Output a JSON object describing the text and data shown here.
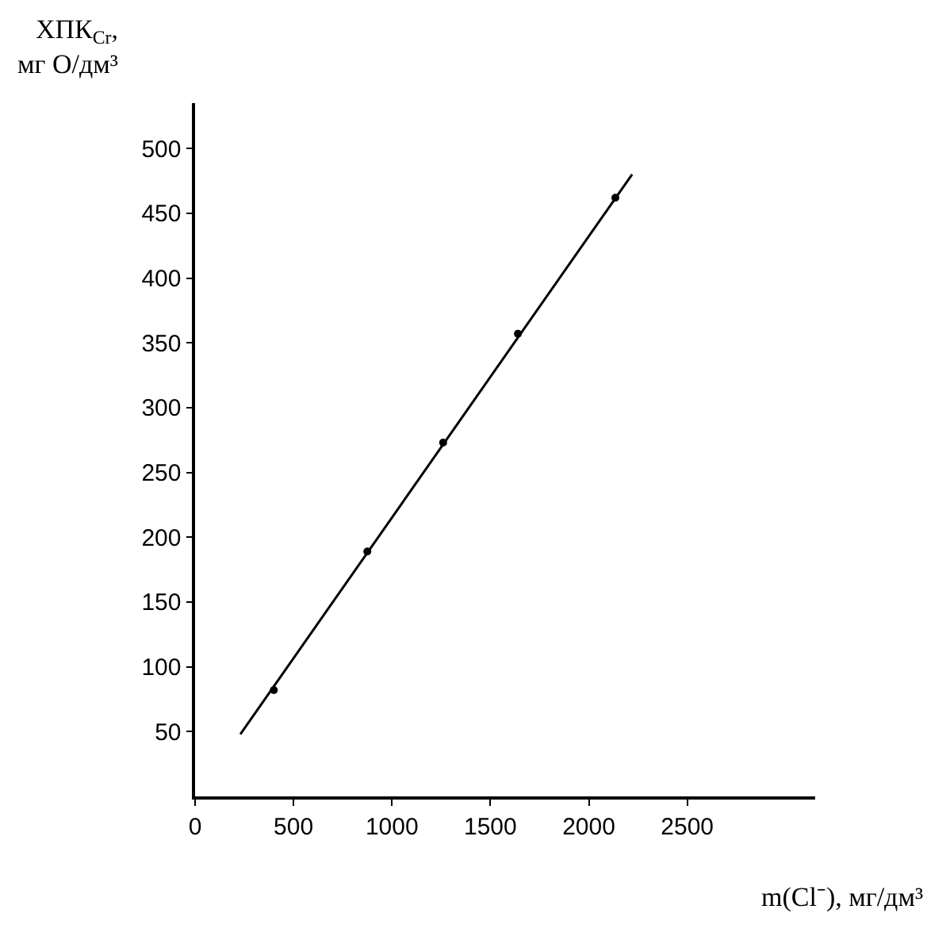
{
  "chart_data": {
    "type": "scatter",
    "xlabel": "m(Cl⁻), мг/дм³",
    "ylabel": "ХПК$_{Cr}$,\nмг О/дм³",
    "series": [
      {
        "color": "#000000",
        "marker": "circle",
        "x": [
          400,
          875,
          1260,
          1640,
          2135
        ],
        "values": [
          82,
          189,
          273,
          357,
          462
        ]
      },
      {
        "type": "line",
        "color": "#000000",
        "marker": "none",
        "line_style": "solid",
        "x": [
          230,
          2220
        ],
        "values": [
          48,
          480
        ]
      }
    ],
    "xlim": [
      0,
      3150
    ],
    "xticks": [
      0,
      500,
      1000,
      1500,
      2000,
      2500
    ],
    "ylim": [
      0,
      535
    ],
    "yticks": [
      50,
      100,
      150,
      200,
      250,
      300,
      350,
      400,
      450,
      500
    ]
  }
}
